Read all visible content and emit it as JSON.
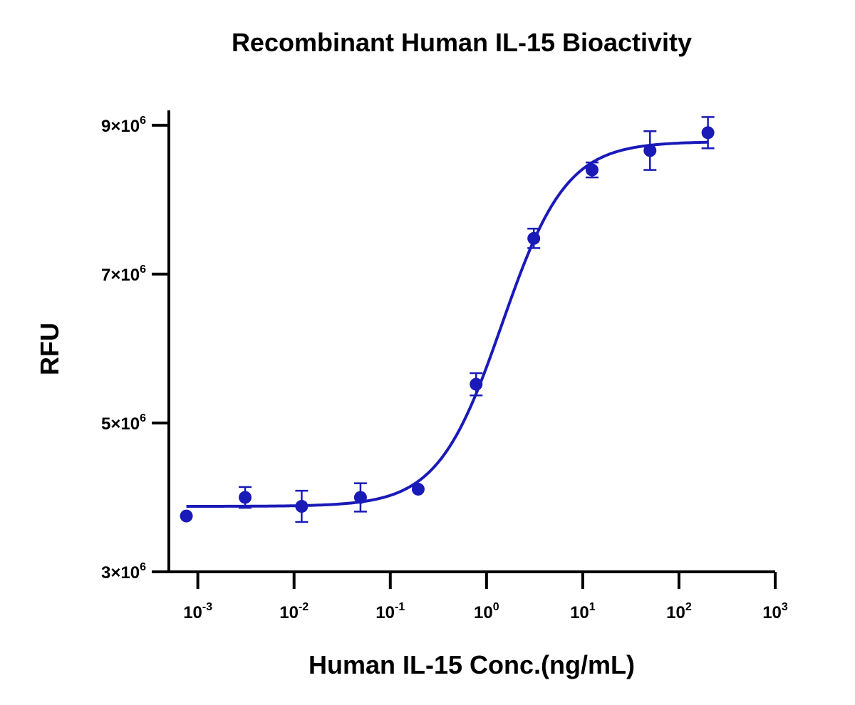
{
  "chart_data": {
    "type": "scatter",
    "title": "Recombinant Human IL-15 Bioactivity",
    "xlabel": "Human IL-15 Conc.(ng/mL)",
    "ylabel": "RFU",
    "x_scale": "log",
    "xlim": [
      0.0005,
      1000
    ],
    "ylim": [
      3000000,
      9200000
    ],
    "x_ticks": [
      {
        "value": 0.001,
        "base": "10",
        "exp": "-3"
      },
      {
        "value": 0.01,
        "base": "10",
        "exp": "-2"
      },
      {
        "value": 0.1,
        "base": "10",
        "exp": "-1"
      },
      {
        "value": 1,
        "base": "10",
        "exp": "0"
      },
      {
        "value": 10,
        "base": "10",
        "exp": "1"
      },
      {
        "value": 100,
        "base": "10",
        "exp": "2"
      },
      {
        "value": 1000,
        "base": "10",
        "exp": "3"
      }
    ],
    "y_ticks": [
      {
        "value": 3000000,
        "base": "3×10",
        "exp": "6"
      },
      {
        "value": 5000000,
        "base": "5×10",
        "exp": "6"
      },
      {
        "value": 7000000,
        "base": "7×10",
        "exp": "6"
      },
      {
        "value": 9000000,
        "base": "9×10",
        "exp": "6"
      }
    ],
    "grid": false,
    "color": "#1a1ab8",
    "points": [
      {
        "x": 0.00076,
        "y": 3750000,
        "err": 0
      },
      {
        "x": 0.0031,
        "y": 4000000,
        "err": 140000
      },
      {
        "x": 0.012,
        "y": 3880000,
        "err": 210000
      },
      {
        "x": 0.049,
        "y": 4000000,
        "err": 190000
      },
      {
        "x": 0.195,
        "y": 4110000,
        "err": 0
      },
      {
        "x": 0.78,
        "y": 5520000,
        "err": 150000
      },
      {
        "x": 3.1,
        "y": 7480000,
        "err": 130000
      },
      {
        "x": 12.5,
        "y": 8400000,
        "err": 100000
      },
      {
        "x": 50,
        "y": 8660000,
        "err": 260000
      },
      {
        "x": 200,
        "y": 8900000,
        "err": 210000
      }
    ],
    "fit": {
      "model": "4PL",
      "bottom": 3880000,
      "top": 8780000,
      "ec50": 1.45,
      "hill": 1.3
    }
  }
}
